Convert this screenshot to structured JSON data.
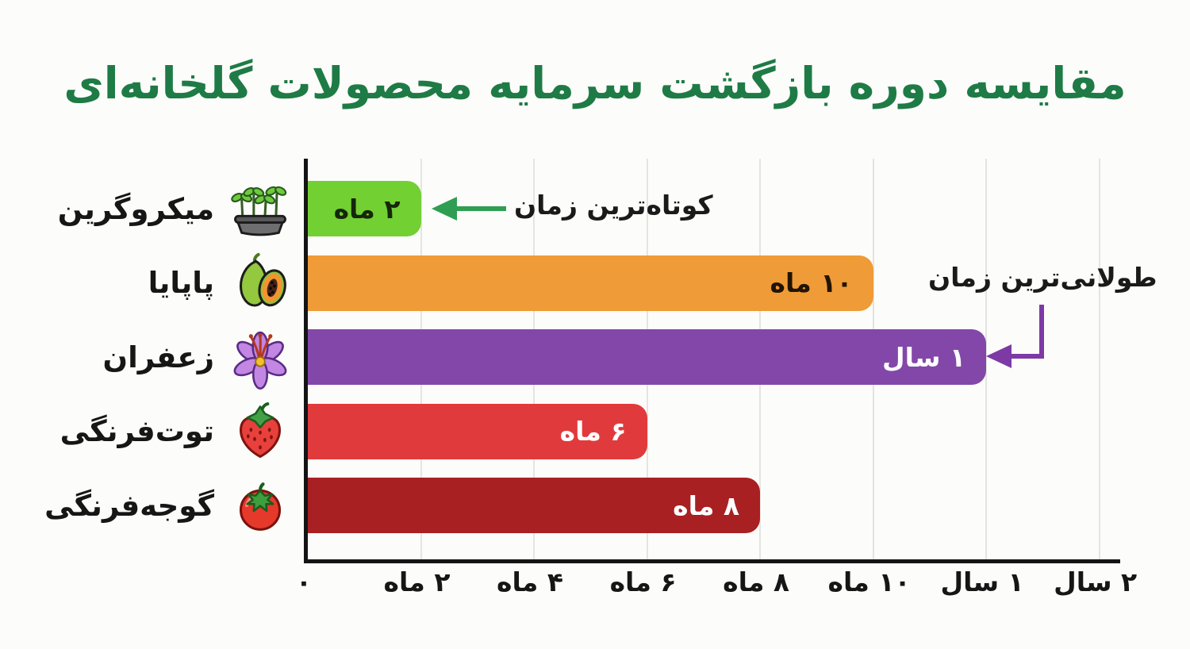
{
  "title": "مقایسه دوره بازگشت سرمایه محصولات گلخانه‌ای",
  "theme": {
    "title_color": "#1e7b46",
    "background": "#fcfcfa",
    "axis_color": "#141414",
    "grid_color": "#e4e4e0"
  },
  "chart_data": {
    "type": "bar",
    "orientation": "horizontal",
    "title": "مقایسه دوره بازگشت سرمایه محصولات گلخانه‌ای",
    "unit": "months",
    "grid": true,
    "axis_months_max": 14.37,
    "categories": [
      "میکروگرین",
      "پاپایا",
      "زعفران",
      "توت‌فرنگی",
      "گوجه‌فرنگی"
    ],
    "rows": [
      {
        "category": "میکروگرین",
        "icon": "microgreen-tray-icon",
        "months": 2,
        "value_label": "۲ ماه",
        "bar_color": "#72d033",
        "value_color": "#16260a"
      },
      {
        "category": "پاپایا",
        "icon": "papaya-icon",
        "months": 10,
        "value_label": "۱۰ ماه",
        "bar_color": "#ef9b37",
        "value_color": "#211403"
      },
      {
        "category": "زعفران",
        "icon": "saffron-flower-icon",
        "months": 12,
        "value_label": "۱ سال",
        "bar_color": "#8347aa",
        "value_color": "#ffffff"
      },
      {
        "category": "توت‌فرنگی",
        "icon": "strawberry-icon",
        "months": 6,
        "value_label": "۶ ماه",
        "bar_color": "#e13a3c",
        "value_color": "#ffffff"
      },
      {
        "category": "گوجه‌فرنگی",
        "icon": "tomato-icon",
        "months": 8,
        "value_label": "۸ ماه",
        "bar_color": "#a92022",
        "value_color": "#ffffff"
      }
    ],
    "x_ticks": [
      {
        "label": "۰",
        "pos": 0,
        "value_months": 0
      },
      {
        "label": "۲ ماه",
        "pos": 2,
        "value_months": 2
      },
      {
        "label": "۴ ماه",
        "pos": 4,
        "value_months": 4
      },
      {
        "label": "۶ ماه",
        "pos": 6,
        "value_months": 6
      },
      {
        "label": "۸ ماه",
        "pos": 8,
        "value_months": 8
      },
      {
        "label": "۱۰ ماه",
        "pos": 10,
        "value_months": 10
      },
      {
        "label": "۱ سال",
        "pos": 12,
        "value_months": 12
      },
      {
        "label": "۲ سال",
        "pos": 14,
        "value_months": 24
      }
    ],
    "annotations": {
      "shortest": {
        "text": "کوتاه‌ترین زمان",
        "color": "#2f9e53",
        "points_to": "میکروگرین"
      },
      "longest": {
        "text": "طولانی‌ترین زمان",
        "color": "#7d3aa5",
        "points_to": "زعفران"
      }
    }
  }
}
